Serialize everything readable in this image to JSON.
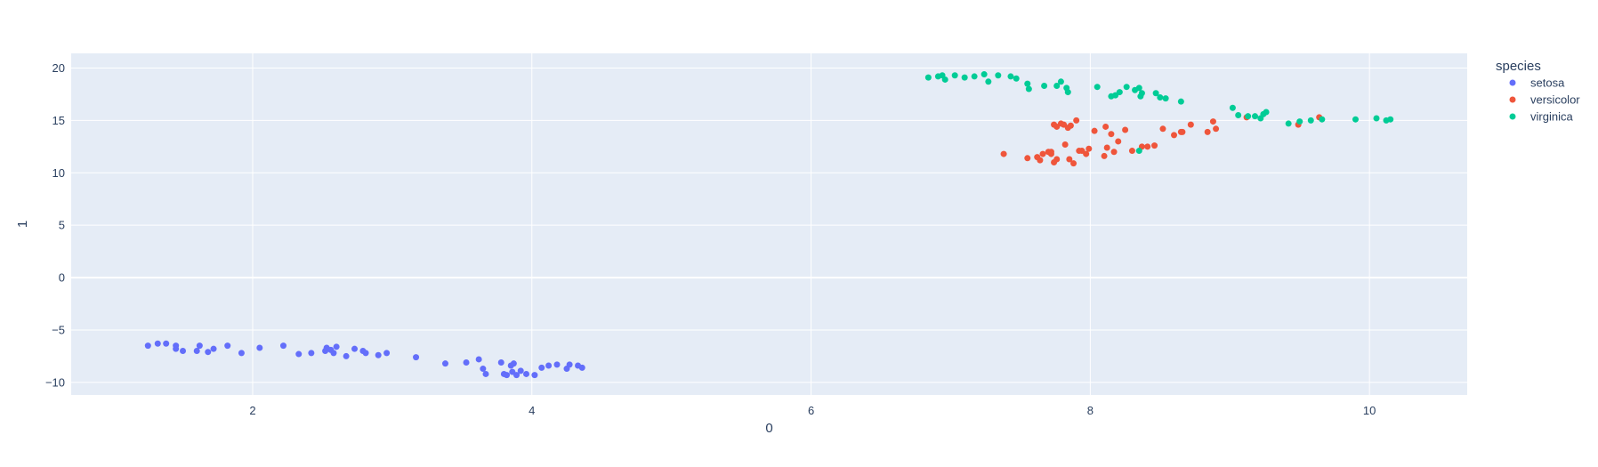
{
  "chart_data": {
    "type": "scatter",
    "xlabel": "0",
    "ylabel": "1",
    "xlim": [
      0.7,
      10.7
    ],
    "ylim": [
      -11.2,
      21.4
    ],
    "x_ticks": [
      2,
      4,
      6,
      8,
      10
    ],
    "y_ticks": [
      -10,
      -5,
      0,
      5,
      10,
      15,
      20
    ],
    "grid": true,
    "legend": {
      "title": "species",
      "placement": "top-right"
    },
    "series": [
      {
        "name": "setosa",
        "color": "#636efa",
        "points": [
          [
            1.25,
            -6.5
          ],
          [
            1.32,
            -6.3
          ],
          [
            1.38,
            -6.3
          ],
          [
            1.45,
            -6.5
          ],
          [
            1.45,
            -6.8
          ],
          [
            1.5,
            -7.0
          ],
          [
            1.6,
            -7.0
          ],
          [
            1.62,
            -6.5
          ],
          [
            1.68,
            -7.1
          ],
          [
            1.72,
            -6.8
          ],
          [
            1.82,
            -6.5
          ],
          [
            1.92,
            -7.2
          ],
          [
            2.05,
            -6.7
          ],
          [
            2.22,
            -6.5
          ],
          [
            2.33,
            -7.3
          ],
          [
            2.42,
            -7.2
          ],
          [
            2.52,
            -7.0
          ],
          [
            2.53,
            -6.7
          ],
          [
            2.56,
            -6.9
          ],
          [
            2.58,
            -7.2
          ],
          [
            2.6,
            -6.6
          ],
          [
            2.67,
            -7.5
          ],
          [
            2.73,
            -6.8
          ],
          [
            2.79,
            -7.0
          ],
          [
            2.81,
            -7.2
          ],
          [
            2.9,
            -7.4
          ],
          [
            2.96,
            -7.2
          ],
          [
            3.17,
            -7.6
          ],
          [
            3.38,
            -8.2
          ],
          [
            3.53,
            -8.1
          ],
          [
            3.62,
            -7.8
          ],
          [
            3.65,
            -8.7
          ],
          [
            3.67,
            -9.2
          ],
          [
            3.78,
            -8.1
          ],
          [
            3.8,
            -9.2
          ],
          [
            3.82,
            -9.3
          ],
          [
            3.85,
            -8.4
          ],
          [
            3.86,
            -9.0
          ],
          [
            3.87,
            -8.2
          ],
          [
            3.89,
            -9.3
          ],
          [
            3.92,
            -8.9
          ],
          [
            3.96,
            -9.2
          ],
          [
            4.02,
            -9.3
          ],
          [
            4.07,
            -8.6
          ],
          [
            4.12,
            -8.4
          ],
          [
            4.18,
            -8.3
          ],
          [
            4.25,
            -8.7
          ],
          [
            4.27,
            -8.3
          ],
          [
            4.33,
            -8.4
          ],
          [
            4.36,
            -8.6
          ]
        ]
      },
      {
        "name": "versicolor",
        "color": "#ef553b",
        "points": [
          [
            7.38,
            11.8
          ],
          [
            7.55,
            11.4
          ],
          [
            7.62,
            11.5
          ],
          [
            7.64,
            11.2
          ],
          [
            7.66,
            11.8
          ],
          [
            7.7,
            12.0
          ],
          [
            7.72,
            11.8
          ],
          [
            7.72,
            12.0
          ],
          [
            7.74,
            14.6
          ],
          [
            7.74,
            11.0
          ],
          [
            7.76,
            14.4
          ],
          [
            7.76,
            11.3
          ],
          [
            7.79,
            14.7
          ],
          [
            7.81,
            14.6
          ],
          [
            7.82,
            12.7
          ],
          [
            7.84,
            14.3
          ],
          [
            7.85,
            11.3
          ],
          [
            7.86,
            14.5
          ],
          [
            7.88,
            10.9
          ],
          [
            7.9,
            15.0
          ],
          [
            7.92,
            12.1
          ],
          [
            7.94,
            12.1
          ],
          [
            7.97,
            11.8
          ],
          [
            7.99,
            12.3
          ],
          [
            8.03,
            14.0
          ],
          [
            8.1,
            11.6
          ],
          [
            8.11,
            14.4
          ],
          [
            8.12,
            12.4
          ],
          [
            8.15,
            13.7
          ],
          [
            8.17,
            12.0
          ],
          [
            8.2,
            13.0
          ],
          [
            8.25,
            14.1
          ],
          [
            8.3,
            12.1
          ],
          [
            8.37,
            12.5
          ],
          [
            8.41,
            12.5
          ],
          [
            8.46,
            12.6
          ],
          [
            8.52,
            14.2
          ],
          [
            8.6,
            13.6
          ],
          [
            8.65,
            13.9
          ],
          [
            8.66,
            13.9
          ],
          [
            8.72,
            14.6
          ],
          [
            8.84,
            13.9
          ],
          [
            8.88,
            14.9
          ],
          [
            8.9,
            14.2
          ],
          [
            9.12,
            15.3
          ],
          [
            9.49,
            14.6
          ],
          [
            9.64,
            15.3
          ]
        ]
      },
      {
        "name": "virginica",
        "color": "#00cc96",
        "points": [
          [
            6.84,
            19.1
          ],
          [
            6.91,
            19.2
          ],
          [
            6.94,
            19.3
          ],
          [
            6.96,
            18.9
          ],
          [
            7.03,
            19.3
          ],
          [
            7.1,
            19.1
          ],
          [
            7.17,
            19.2
          ],
          [
            7.24,
            19.4
          ],
          [
            7.27,
            18.7
          ],
          [
            7.34,
            19.3
          ],
          [
            7.43,
            19.2
          ],
          [
            7.47,
            19.0
          ],
          [
            7.55,
            18.5
          ],
          [
            7.56,
            18.0
          ],
          [
            7.67,
            18.3
          ],
          [
            7.76,
            18.3
          ],
          [
            7.79,
            18.7
          ],
          [
            7.83,
            18.1
          ],
          [
            7.84,
            17.7
          ],
          [
            8.05,
            18.2
          ],
          [
            8.15,
            17.3
          ],
          [
            8.18,
            17.4
          ],
          [
            8.21,
            17.7
          ],
          [
            8.26,
            18.2
          ],
          [
            8.32,
            17.9
          ],
          [
            8.35,
            18.1
          ],
          [
            8.36,
            17.3
          ],
          [
            8.37,
            17.6
          ],
          [
            8.47,
            17.6
          ],
          [
            8.5,
            17.2
          ],
          [
            8.54,
            17.1
          ],
          [
            8.65,
            16.8
          ],
          [
            8.35,
            12.1
          ],
          [
            9.02,
            16.2
          ],
          [
            9.06,
            15.5
          ],
          [
            9.13,
            15.4
          ],
          [
            9.18,
            15.4
          ],
          [
            9.22,
            15.2
          ],
          [
            9.24,
            15.6
          ],
          [
            9.26,
            15.8
          ],
          [
            9.42,
            14.7
          ],
          [
            9.5,
            14.9
          ],
          [
            9.58,
            15.0
          ],
          [
            9.66,
            15.1
          ],
          [
            9.9,
            15.1
          ],
          [
            10.05,
            15.2
          ],
          [
            10.12,
            15.0
          ],
          [
            10.15,
            15.1
          ]
        ]
      }
    ]
  }
}
